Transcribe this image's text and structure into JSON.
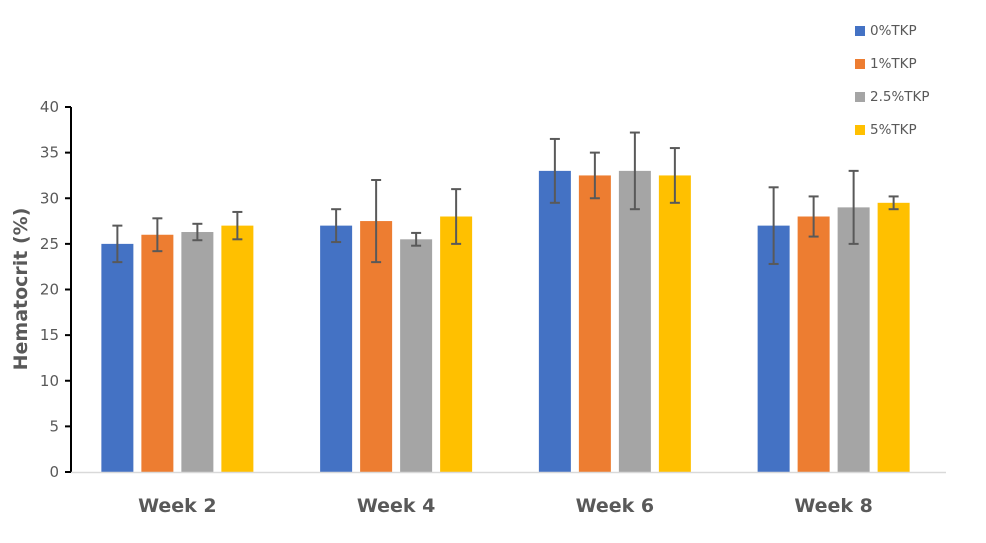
{
  "chart_data": {
    "type": "bar",
    "title": "",
    "xlabel": "",
    "ylabel": "Hematocrit (%)",
    "ylim": [
      0,
      40
    ],
    "yticks": [
      0,
      5,
      10,
      15,
      20,
      25,
      30,
      35,
      40
    ],
    "grid": false,
    "legend_position": "top-right",
    "categories": [
      "Week 2",
      "Week 4",
      "Week 6",
      "Week 8"
    ],
    "series": [
      {
        "name": "0%TKP",
        "color": "#4472C4",
        "values": [
          25,
          27,
          33,
          27
        ],
        "errors": [
          2,
          1.8,
          3.5,
          4.2
        ]
      },
      {
        "name": "1%TKP",
        "color": "#ED7D31",
        "values": [
          26,
          27.5,
          32.5,
          28
        ],
        "errors": [
          1.8,
          4.5,
          2.5,
          2.2
        ]
      },
      {
        "name": "2.5%TKP",
        "color": "#A5A5A5",
        "values": [
          26.3,
          25.5,
          33,
          29
        ],
        "errors": [
          0.9,
          0.7,
          4.2,
          4
        ]
      },
      {
        "name": "5%TKP",
        "color": "#FFC000",
        "values": [
          27,
          28,
          32.5,
          29.5
        ],
        "errors": [
          1.5,
          3,
          3,
          0.7
        ]
      }
    ],
    "error_bar_color": "#595959"
  }
}
